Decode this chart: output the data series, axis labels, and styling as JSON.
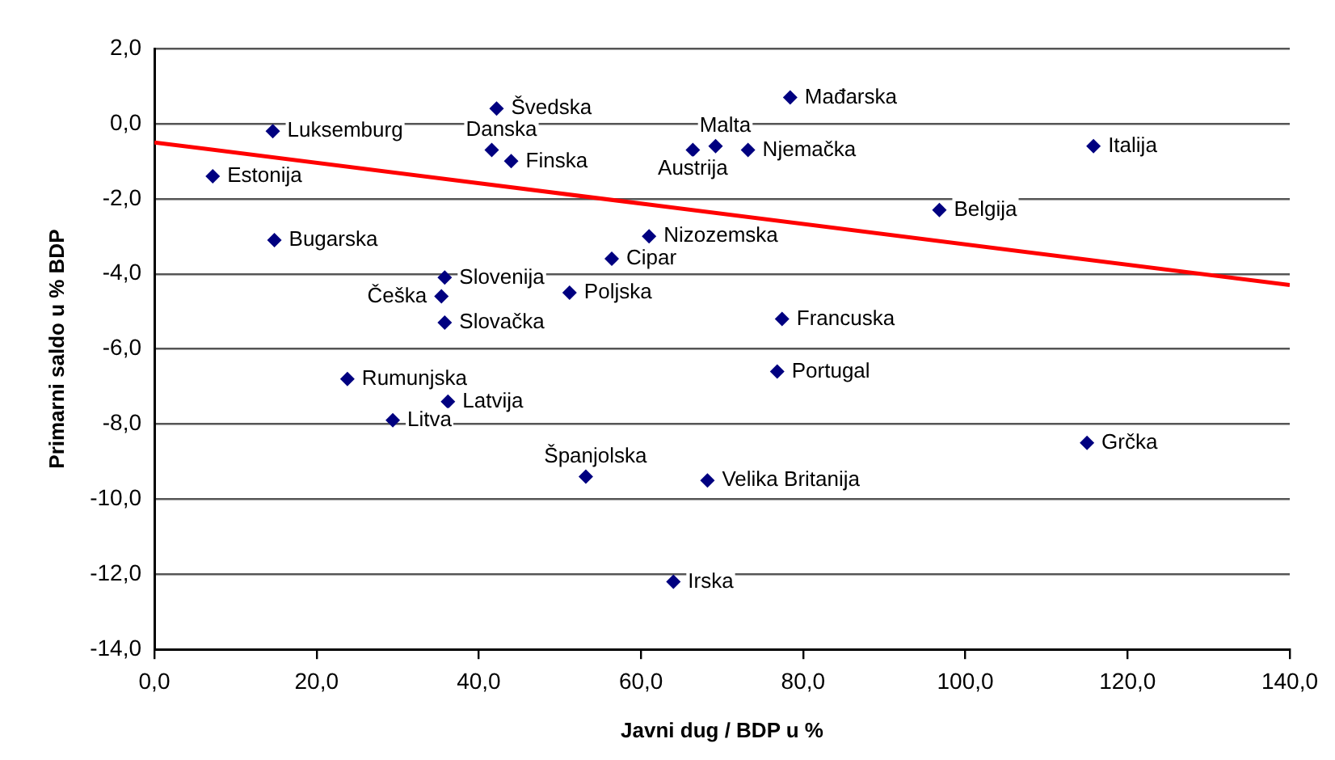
{
  "chart_data": {
    "type": "scatter",
    "xlabel": "Javni dug / BDP u %",
    "ylabel": "Primarni saldo u % BDP",
    "xlim": [
      0,
      140
    ],
    "xticks": [
      {
        "value": 0,
        "label": "0,0"
      },
      {
        "value": 20,
        "label": "20,0"
      },
      {
        "value": 40,
        "label": "40,0"
      },
      {
        "value": 60,
        "label": "60,0"
      },
      {
        "value": 80,
        "label": "80,0"
      },
      {
        "value": 100,
        "label": "100,0"
      },
      {
        "value": 120,
        "label": "120,0"
      },
      {
        "value": 140,
        "label": "140,0"
      }
    ],
    "ylim": [
      -14,
      2
    ],
    "yticks": [
      {
        "value": -14,
        "label": "-14,0"
      },
      {
        "value": -12,
        "label": "-12,0"
      },
      {
        "value": -10,
        "label": "-10,0"
      },
      {
        "value": -8,
        "label": "-8,0"
      },
      {
        "value": -6,
        "label": "-6,0"
      },
      {
        "value": -4,
        "label": "-4,0"
      },
      {
        "value": -2,
        "label": "-2,0"
      },
      {
        "value": 0,
        "label": "0,0"
      },
      {
        "value": 2,
        "label": "2,0"
      }
    ],
    "grid": "y",
    "legend": false,
    "marker": "diamond",
    "series": [
      {
        "color": "#000080",
        "x": [
          14.6,
          7.2,
          14.8,
          42.2,
          41.6,
          44,
          35.8,
          35.4,
          35.8,
          51.2,
          56.4,
          61,
          69.2,
          66.4,
          73.2,
          78.4,
          115.8,
          96.8,
          77.4,
          76.8,
          23.8,
          36.2,
          29.4,
          53.2,
          68.2,
          115,
          64
        ],
        "values": [
          -0.2,
          -1.4,
          -3.1,
          0.4,
          -0.7,
          -1.0,
          -4.1,
          -4.6,
          -5.3,
          -4.5,
          -3.6,
          -3.0,
          -0.6,
          -0.7,
          -0.7,
          0.7,
          -0.6,
          -2.3,
          -5.2,
          -6.6,
          -6.8,
          -7.4,
          -7.9,
          -9.4,
          -9.5,
          -8.5,
          -12.2
        ]
      },
      {
        "type": "line",
        "color": "#ff0000",
        "marker": "none",
        "x": [
          0,
          140
        ],
        "values": [
          -0.5,
          -4.3
        ]
      }
    ],
    "annotations": [
      {
        "text": "Luksemburg",
        "x": 14.6,
        "y": -0.2
      },
      {
        "text": "Estonija",
        "x": 7.2,
        "y": -1.4
      },
      {
        "text": "Bugarska",
        "x": 14.8,
        "y": -3.1
      },
      {
        "text": "Švedska",
        "x": 42.2,
        "y": 0.4
      },
      {
        "text": "Danska",
        "x": 41.6,
        "y": -0.7
      },
      {
        "text": "Finska",
        "x": 44,
        "y": -1.0
      },
      {
        "text": "Slovenija",
        "x": 35.8,
        "y": -4.1
      },
      {
        "text": "Češka",
        "x": 35.4,
        "y": -4.6
      },
      {
        "text": "Slovačka",
        "x": 35.8,
        "y": -5.3
      },
      {
        "text": "Poljska",
        "x": 51.2,
        "y": -4.5
      },
      {
        "text": "Cipar",
        "x": 56.4,
        "y": -3.6
      },
      {
        "text": "Nizozemska",
        "x": 61,
        "y": -3.0
      },
      {
        "text": "Malta",
        "x": 69.2,
        "y": -0.6
      },
      {
        "text": "Austrija",
        "x": 66.4,
        "y": -0.7
      },
      {
        "text": "Njemačka",
        "x": 73.2,
        "y": -0.7
      },
      {
        "text": "Mađarska",
        "x": 78.4,
        "y": 0.7
      },
      {
        "text": "Italija",
        "x": 115.8,
        "y": -0.6
      },
      {
        "text": "Belgija",
        "x": 96.8,
        "y": -2.3
      },
      {
        "text": "Francuska",
        "x": 77.4,
        "y": -5.2
      },
      {
        "text": "Portugal",
        "x": 76.8,
        "y": -6.6
      },
      {
        "text": "Rumunjska",
        "x": 23.8,
        "y": -6.8
      },
      {
        "text": "Latvija",
        "x": 36.2,
        "y": -7.4
      },
      {
        "text": "Litva",
        "x": 29.4,
        "y": -7.9
      },
      {
        "text": "Španjolska",
        "x": 53.2,
        "y": -9.4
      },
      {
        "text": "Velika Britanija",
        "x": 68.2,
        "y": -9.5
      },
      {
        "text": "Grčka",
        "x": 115,
        "y": -8.5
      },
      {
        "text": "Irska",
        "x": 64,
        "y": -12.2
      }
    ]
  }
}
